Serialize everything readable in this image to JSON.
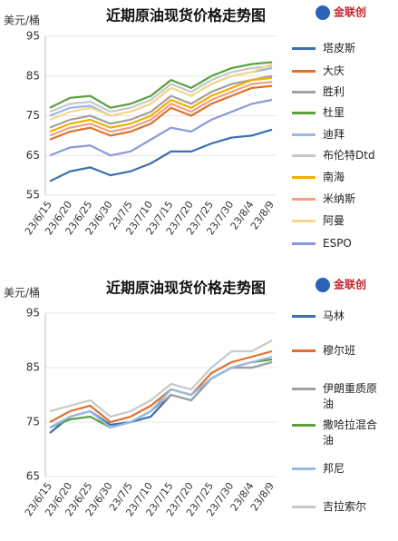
{
  "chart_data": [
    {
      "type": "line",
      "title": "近期原油现货价格走势图",
      "brand": "金联创",
      "y_label": "美元/桶",
      "categories": [
        "23/6/15",
        "23/6/20",
        "23/6/25",
        "23/6/30",
        "23/7/5",
        "23/7/10",
        "23/7/15",
        "23/7/20",
        "23/7/25",
        "23/7/30",
        "23/8/4",
        "23/8/9"
      ],
      "ylim": [
        55,
        95
      ],
      "yticks": [
        55,
        65,
        75,
        85,
        95
      ],
      "grid": true,
      "series": [
        {
          "name": "塔皮斯",
          "color": "#3a6fb0",
          "values": [
            58.5,
            61,
            62,
            60,
            61,
            63,
            66,
            66,
            68,
            69.5,
            70,
            71.5
          ]
        },
        {
          "name": "大庆",
          "color": "#e0702a",
          "values": [
            69,
            71,
            72,
            70,
            71,
            73,
            77,
            75,
            78,
            80,
            82,
            82.5
          ]
        },
        {
          "name": "胜利",
          "color": "#a0a0a0",
          "values": [
            72,
            74,
            75,
            73,
            74,
            76,
            80,
            78,
            81,
            83,
            84,
            85
          ]
        },
        {
          "name": "杜里",
          "color": "#5aa040",
          "values": [
            77,
            79.5,
            80,
            77,
            78,
            80,
            84,
            82,
            85,
            87,
            88,
            88.5
          ]
        },
        {
          "name": "迪拜",
          "color": "#9ab8e8",
          "values": [
            75,
            77,
            77.5,
            75,
            76,
            78,
            82,
            80,
            83,
            85,
            86,
            87
          ]
        },
        {
          "name": "布伦特Dtd",
          "color": "#c8c8c8",
          "values": [
            76,
            78,
            78.5,
            76,
            77,
            79,
            83,
            81,
            84,
            86,
            87,
            87.5
          ]
        },
        {
          "name": "南海",
          "color": "#f0b000",
          "values": [
            71,
            73,
            74,
            72,
            73,
            75,
            79,
            77,
            80,
            82,
            84,
            84.5
          ]
        },
        {
          "name": "米纳斯",
          "color": "#f0a080",
          "values": [
            70,
            72,
            73,
            71,
            72,
            74,
            78,
            76,
            79,
            81,
            83,
            83.5
          ]
        },
        {
          "name": "阿曼",
          "color": "#f5d98a",
          "values": [
            74,
            76,
            77,
            75,
            76,
            78,
            82,
            80,
            83,
            85,
            86,
            88
          ]
        },
        {
          "name": "ESPO",
          "color": "#8a9ad8",
          "values": [
            65,
            67,
            67.5,
            65,
            66,
            69,
            72,
            71,
            74,
            76,
            78,
            79
          ]
        }
      ]
    },
    {
      "type": "line",
      "title": "近期原油现货价格走势图",
      "brand": "金联创",
      "y_label": "美元/桶",
      "categories": [
        "23/6/15",
        "23/6/20",
        "23/6/25",
        "23/6/30",
        "23/7/5",
        "23/7/10",
        "23/7/15",
        "23/7/20",
        "23/7/25",
        "23/7/30",
        "23/8/4",
        "23/8/9"
      ],
      "ylim": [
        65,
        95
      ],
      "yticks": [
        65,
        75,
        85,
        95
      ],
      "grid": true,
      "series": [
        {
          "name": "马林",
          "color": "#3a6fb0",
          "values": [
            73,
            76,
            77,
            74.5,
            75,
            76,
            80,
            79,
            83,
            85,
            85,
            86
          ]
        },
        {
          "name": "穆尔班",
          "color": "#e0702a",
          "values": [
            75,
            77,
            78,
            75,
            76,
            78,
            81,
            80,
            84,
            86,
            87,
            88
          ]
        },
        {
          "name": "伊朗重质原油",
          "color": "#a0a0a0",
          "values": [
            74,
            76,
            77,
            74,
            75,
            77,
            80,
            79,
            83,
            85,
            85,
            86
          ]
        },
        {
          "name": "撒哈拉混合油",
          "color": "#5aa040",
          "values": [
            74,
            75.5,
            76,
            74,
            75,
            77,
            81,
            80,
            83,
            85,
            86,
            86.5
          ]
        },
        {
          "name": "邦尼",
          "color": "#9ab8e8",
          "values": [
            74,
            76,
            77,
            74,
            75,
            77,
            81,
            80,
            83,
            85,
            86,
            87
          ]
        },
        {
          "name": "吉拉索尔",
          "color": "#c8c8c8",
          "values": [
            77,
            78,
            79,
            76,
            77,
            79,
            82,
            81,
            85,
            88,
            88,
            90
          ]
        }
      ]
    }
  ]
}
